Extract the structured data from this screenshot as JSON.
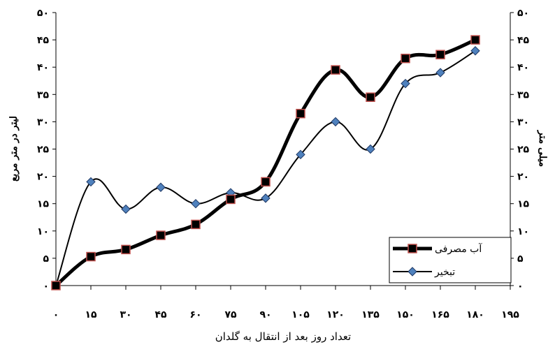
{
  "chart_data": {
    "type": "line",
    "xlabel": "تعداد روز بعد از انتقال به گلدان",
    "ylabel_left": "لیتر در متر مربع",
    "ylabel_right": "میلی متر",
    "x": [
      0,
      15,
      30,
      45,
      60,
      75,
      90,
      105,
      120,
      135,
      150,
      165,
      180
    ],
    "x_ticks": [
      0,
      15,
      30,
      45,
      60,
      75,
      90,
      105,
      120,
      135,
      150,
      165,
      180,
      195
    ],
    "x_tick_labels": [
      "۰",
      "۱۵",
      "۳۰",
      "۴۵",
      "۶۰",
      "۷۵",
      "۹۰",
      "۱۰۵",
      "۱۲۰",
      "۱۳۵",
      "۱۵۰",
      "۱۶۵",
      "۱۸۰",
      "۱۹۵"
    ],
    "xlim": [
      0,
      195
    ],
    "ylim": [
      0,
      50
    ],
    "y_ticks": [
      0,
      5,
      10,
      15,
      20,
      25,
      30,
      35,
      40,
      45,
      50
    ],
    "y_tick_labels": [
      "۰",
      "۵",
      "۱۰",
      "۱۵",
      "۲۰",
      "۲۵",
      "۳۰",
      "۳۵",
      "۴۰",
      "۴۵",
      "۵۰"
    ],
    "grid": false,
    "legend_position": "bottom-right",
    "series": [
      {
        "name": "آب مصرفی",
        "marker": "square",
        "line_color": "#000000",
        "marker_fill": "#000000",
        "marker_edge": "#c0504d",
        "line_width": "thick",
        "values": [
          0,
          5.3,
          6.6,
          9.2,
          11.2,
          15.8,
          19,
          31.5,
          39.5,
          34.5,
          41.6,
          42.3,
          45
        ]
      },
      {
        "name": "تبخیر",
        "marker": "diamond",
        "line_color": "#000000",
        "marker_fill": "#4f81bd",
        "marker_edge": "#1f3864",
        "line_width": "thin",
        "values": [
          0,
          19,
          14,
          18,
          15,
          17,
          16,
          24,
          30,
          25,
          37,
          39,
          43
        ]
      }
    ]
  }
}
